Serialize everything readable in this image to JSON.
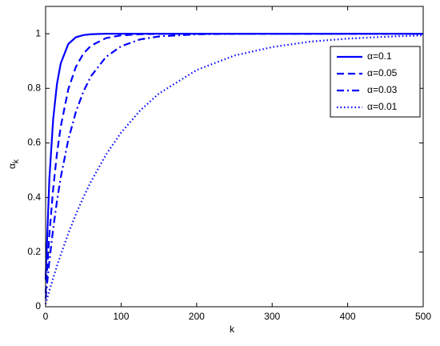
{
  "chart_data": {
    "type": "line",
    "xlabel": "k",
    "ylabel": "α",
    "ylabel_sub": "k",
    "x": [
      0,
      5,
      10,
      15,
      20,
      30,
      40,
      50,
      60,
      80,
      100,
      125,
      150,
      200,
      250,
      300,
      350,
      400,
      450,
      500
    ],
    "series": [
      {
        "name": "α=0.1",
        "color": "#0000ff",
        "dash": "solid",
        "values": [
          0.1,
          0.469,
          0.686,
          0.815,
          0.891,
          0.962,
          0.987,
          0.995,
          0.998,
          1,
          1,
          1,
          1,
          1,
          1,
          1,
          1,
          1,
          1,
          1
        ]
      },
      {
        "name": "α=0.05",
        "color": "#0000ff",
        "dash": "dashed",
        "values": [
          0.05,
          0.265,
          0.431,
          0.56,
          0.659,
          0.796,
          0.878,
          0.927,
          0.956,
          0.984,
          0.994,
          0.998,
          0.9995,
          1,
          1,
          1,
          1,
          1,
          1,
          1
        ]
      },
      {
        "name": "α=0.03",
        "color": "#0000ff",
        "dash": "dashdot",
        "values": [
          0.03,
          0.167,
          0.285,
          0.386,
          0.473,
          0.611,
          0.713,
          0.788,
          0.844,
          0.915,
          0.954,
          0.979,
          0.99,
          0.998,
          0.9995,
          1,
          1,
          1,
          1,
          1
        ]
      },
      {
        "name": "α=0.01",
        "color": "#0000ff",
        "dash": "dotted",
        "values": [
          0.01,
          0.059,
          0.105,
          0.149,
          0.19,
          0.268,
          0.338,
          0.401,
          0.458,
          0.557,
          0.638,
          0.718,
          0.781,
          0.867,
          0.92,
          0.951,
          0.971,
          0.982,
          0.989,
          0.994
        ]
      }
    ],
    "xlim": [
      0,
      500
    ],
    "xticks": [
      0,
      100,
      200,
      300,
      400,
      500
    ],
    "ylim": [
      0,
      1.1
    ],
    "yticks": [
      0,
      0.2,
      0.4,
      0.6,
      0.8,
      1
    ],
    "grid": false,
    "legend": "northeast"
  }
}
